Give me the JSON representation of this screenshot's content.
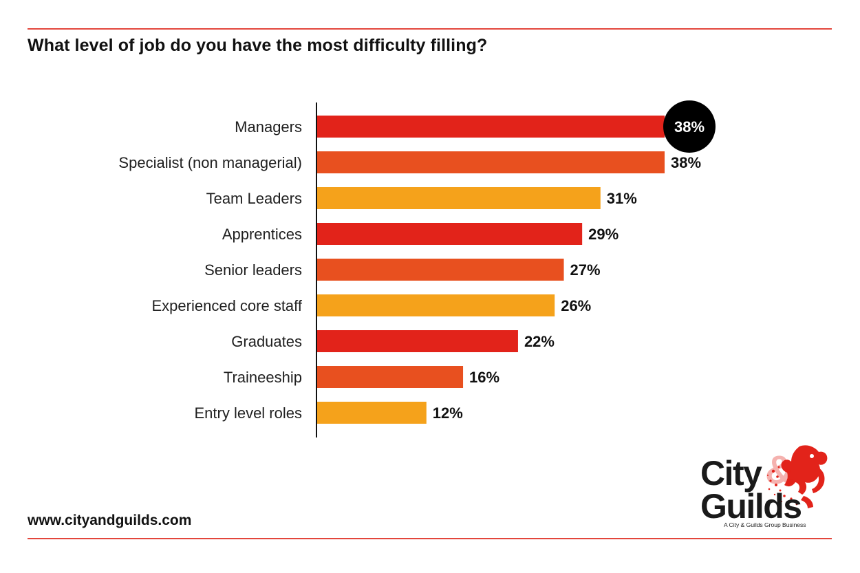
{
  "title": "What level of job do you have the most difficulty filling?",
  "footer": {
    "website": "www.cityandguilds.com"
  },
  "logo": {
    "line1": "City",
    "line2": "Guilds",
    "ampersand": "&",
    "tagline": "A City & Guilds Group Business"
  },
  "colors": {
    "red": "#e2231a",
    "orange": "#e8501f",
    "amber": "#f5a21b",
    "rule": "#e3463c",
    "highlight": "#000000"
  },
  "chart_data": {
    "type": "bar",
    "orientation": "horizontal",
    "title": "What level of job do you have the most difficulty filling?",
    "xlabel": "",
    "ylabel": "",
    "xlim": [
      0,
      38
    ],
    "grid": false,
    "categories": [
      "Managers",
      "Specialist (non managerial)",
      "Team Leaders",
      "Apprentices",
      "Senior leaders",
      "Experienced core staff",
      "Graduates",
      "Traineeship",
      "Entry level roles"
    ],
    "values": [
      38,
      38,
      31,
      29,
      27,
      26,
      22,
      16,
      12
    ],
    "value_labels": [
      "38%",
      "38%",
      "31%",
      "29%",
      "27%",
      "26%",
      "22%",
      "16%",
      "12%"
    ],
    "bar_colors": [
      "#e2231a",
      "#e8501f",
      "#f5a21b",
      "#e2231a",
      "#e8501f",
      "#f5a21b",
      "#e2231a",
      "#e8501f",
      "#f5a21b"
    ],
    "highlighted_index": 0
  }
}
